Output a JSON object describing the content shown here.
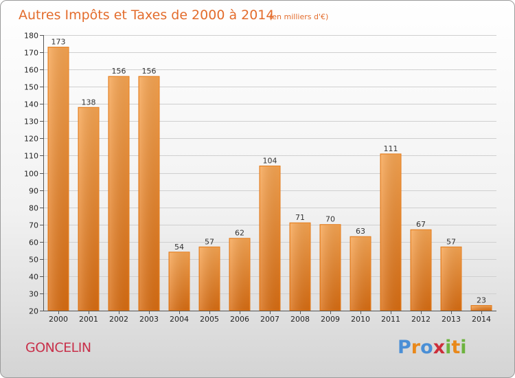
{
  "chart_data": {
    "type": "bar",
    "title": "Autres Impôts et Taxes de 2000 à 2014",
    "subtitle": "(en milliers d'€)",
    "categories": [
      "2000",
      "2001",
      "2002",
      "2003",
      "2004",
      "2005",
      "2006",
      "2007",
      "2008",
      "2009",
      "2010",
      "2011",
      "2012",
      "2013",
      "2014"
    ],
    "values": [
      173,
      138,
      156,
      156,
      54,
      57,
      62,
      104,
      71,
      70,
      63,
      111,
      67,
      57,
      23
    ],
    "ylim": [
      20,
      180
    ],
    "yticks": [
      20,
      30,
      40,
      50,
      60,
      70,
      80,
      90,
      100,
      110,
      120,
      130,
      140,
      150,
      160,
      170,
      180
    ],
    "grid": true,
    "bar_color": "#f0852a"
  },
  "footer": {
    "city": "GONCELIN",
    "logo_letters": [
      "P",
      "r",
      "o",
      "x",
      "i",
      "t",
      "i"
    ]
  }
}
